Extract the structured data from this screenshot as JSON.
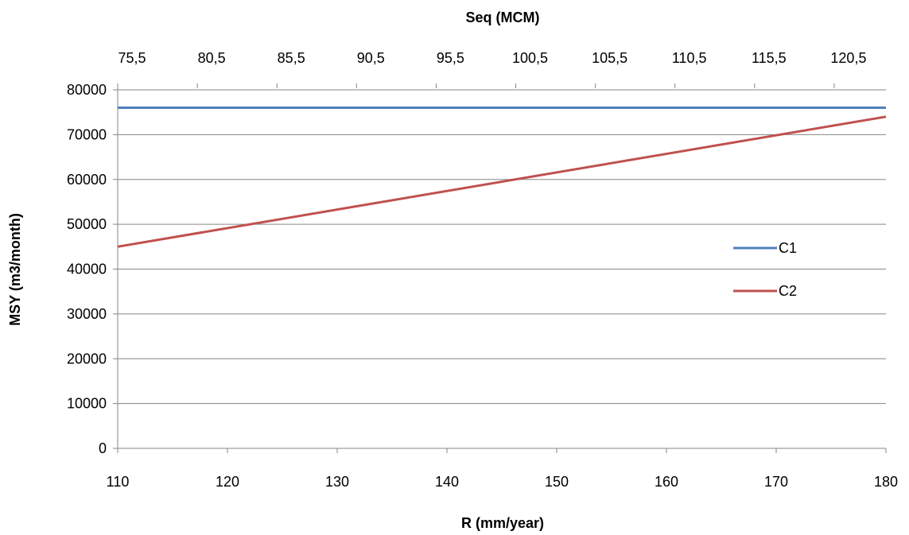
{
  "chart_data": {
    "type": "line",
    "title": "",
    "xlabel": "R (mm/year)",
    "ylabel": "MSY (m3/month)",
    "x2label": "Seq (MCM)",
    "xlim": [
      110,
      180
    ],
    "ylim": [
      0,
      80000
    ],
    "x_ticks": [
      110,
      120,
      130,
      140,
      150,
      160,
      170,
      180
    ],
    "y_ticks": [
      0,
      10000,
      20000,
      30000,
      40000,
      50000,
      60000,
      70000,
      80000
    ],
    "x2lim": [
      75.5,
      123.75
    ],
    "x2_ticks": [
      "75,5",
      "80,5",
      "85,5",
      "90,5",
      "95,5",
      "100,5",
      "105,5",
      "110,5",
      "115,5",
      "120,5"
    ],
    "x2_tick_values": [
      75.5,
      80.5,
      85.5,
      90.5,
      95.5,
      100.5,
      105.5,
      110.5,
      115.5,
      120.5
    ],
    "grid": "horizontal",
    "legend": "right",
    "series": [
      {
        "name": "C1",
        "color": "#4F81BD",
        "x": [
          110,
          180
        ],
        "values": [
          76000,
          76000
        ]
      },
      {
        "name": "C2",
        "color": "#C0504D",
        "x": [
          110,
          180
        ],
        "values": [
          45000,
          74000
        ]
      }
    ]
  }
}
